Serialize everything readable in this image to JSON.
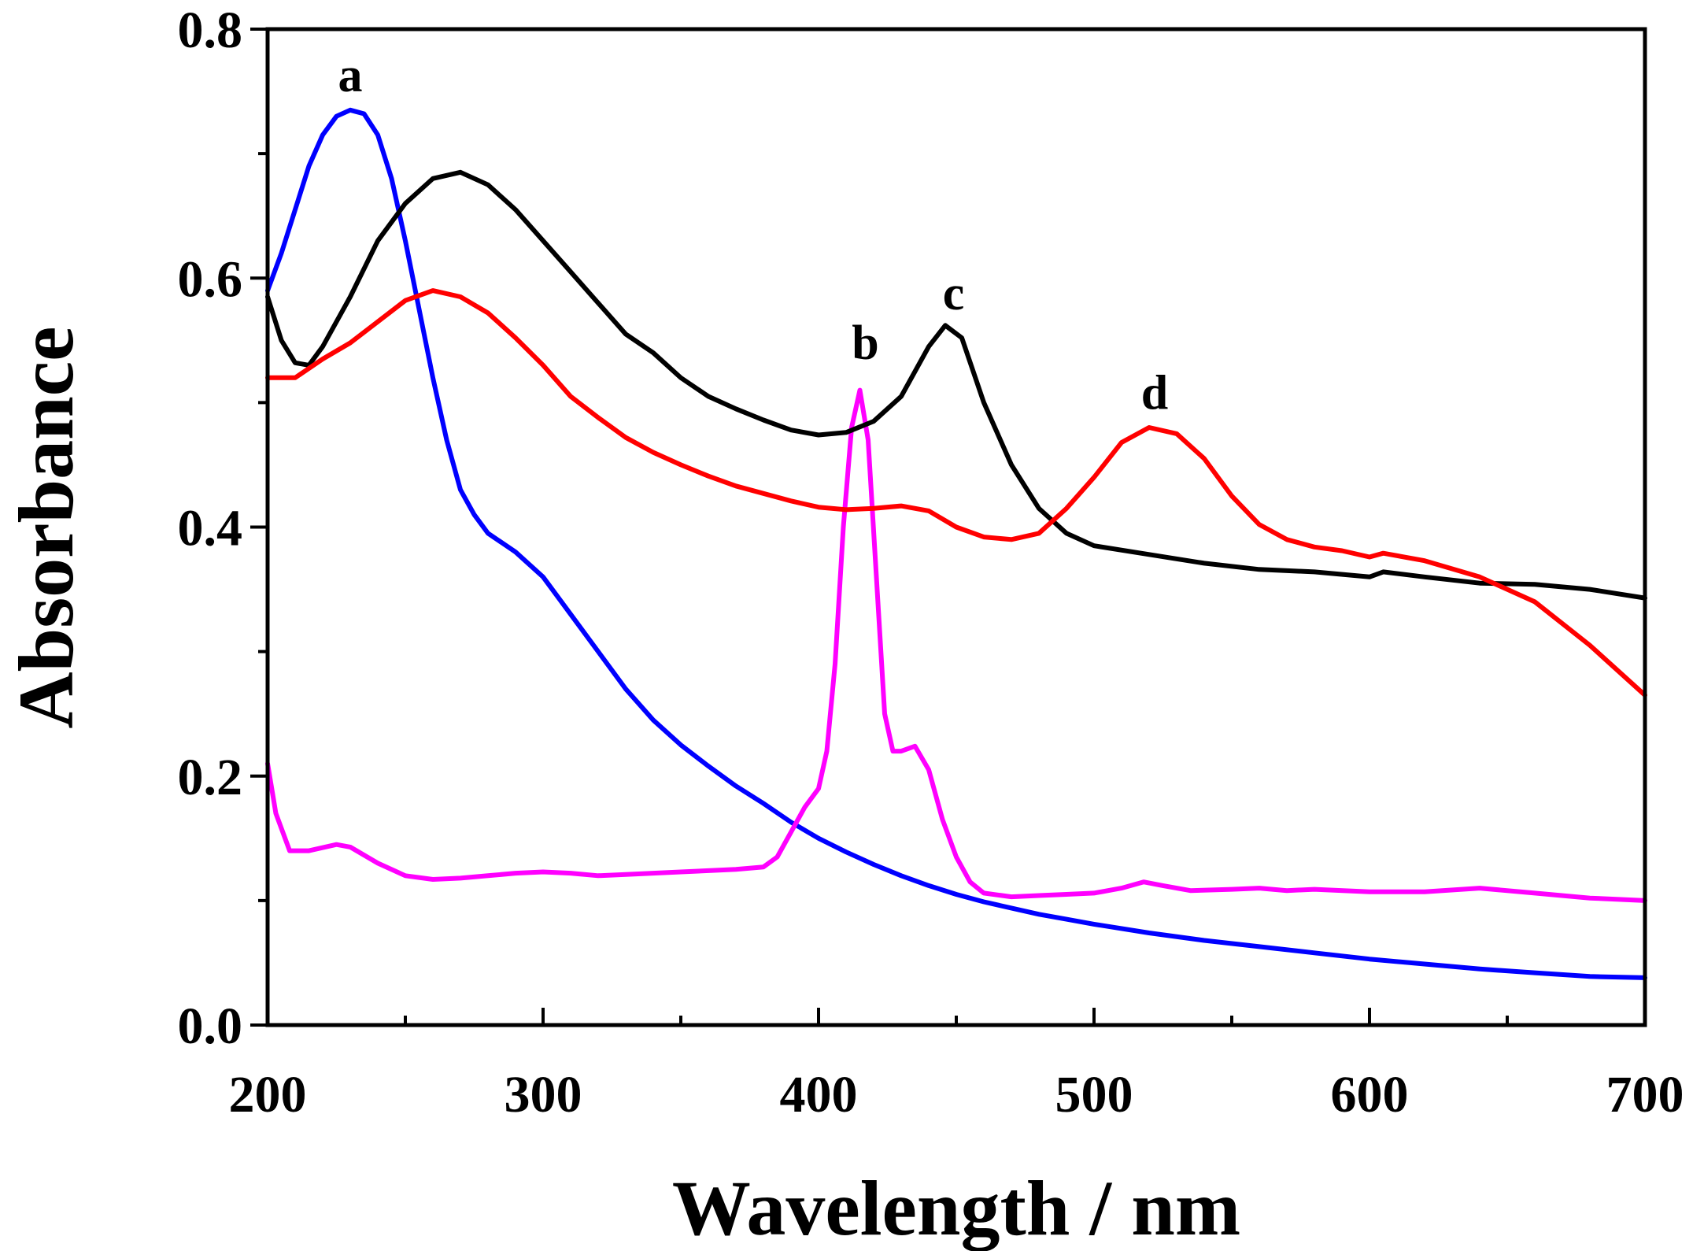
{
  "chart_data": {
    "type": "line",
    "xlabel": "Wavelength / nm",
    "ylabel": "Absorbance",
    "xlim": [
      200,
      700
    ],
    "ylim": [
      0.0,
      0.8
    ],
    "x_ticks": [
      200,
      300,
      400,
      500,
      600,
      700
    ],
    "x_tick_labels": [
      "200",
      "300",
      "400",
      "500",
      "600",
      "700"
    ],
    "y_ticks": [
      0.0,
      0.2,
      0.4,
      0.6,
      0.8
    ],
    "y_tick_labels": [
      "0.0",
      "0.2",
      "0.4",
      "0.6",
      "0.8"
    ],
    "grid": false,
    "legend": "none",
    "series": [
      {
        "label": "a",
        "color": "#0000ff",
        "label_pos": [
          230,
          0.75
        ],
        "points": [
          [
            200,
            0.59
          ],
          [
            205,
            0.62
          ],
          [
            210,
            0.655
          ],
          [
            215,
            0.69
          ],
          [
            220,
            0.715
          ],
          [
            225,
            0.73
          ],
          [
            230,
            0.735
          ],
          [
            235,
            0.732
          ],
          [
            240,
            0.715
          ],
          [
            245,
            0.68
          ],
          [
            250,
            0.63
          ],
          [
            255,
            0.575
          ],
          [
            260,
            0.52
          ],
          [
            265,
            0.47
          ],
          [
            270,
            0.43
          ],
          [
            275,
            0.41
          ],
          [
            280,
            0.395
          ],
          [
            290,
            0.38
          ],
          [
            300,
            0.36
          ],
          [
            310,
            0.33
          ],
          [
            320,
            0.3
          ],
          [
            330,
            0.27
          ],
          [
            340,
            0.245
          ],
          [
            350,
            0.225
          ],
          [
            360,
            0.208
          ],
          [
            370,
            0.192
          ],
          [
            380,
            0.178
          ],
          [
            390,
            0.163
          ],
          [
            400,
            0.15
          ],
          [
            410,
            0.139
          ],
          [
            420,
            0.129
          ],
          [
            430,
            0.12
          ],
          [
            440,
            0.112
          ],
          [
            450,
            0.105
          ],
          [
            460,
            0.099
          ],
          [
            470,
            0.094
          ],
          [
            480,
            0.089
          ],
          [
            490,
            0.085
          ],
          [
            500,
            0.081
          ],
          [
            520,
            0.074
          ],
          [
            540,
            0.068
          ],
          [
            560,
            0.063
          ],
          [
            580,
            0.058
          ],
          [
            600,
            0.053
          ],
          [
            620,
            0.049
          ],
          [
            640,
            0.045
          ],
          [
            660,
            0.042
          ],
          [
            680,
            0.039
          ],
          [
            700,
            0.038
          ]
        ]
      },
      {
        "label": "b",
        "color": "#ff00ff",
        "label_pos": [
          417,
          0.535
        ],
        "points": [
          [
            200,
            0.21
          ],
          [
            203,
            0.17
          ],
          [
            208,
            0.14
          ],
          [
            215,
            0.14
          ],
          [
            225,
            0.145
          ],
          [
            230,
            0.143
          ],
          [
            240,
            0.13
          ],
          [
            250,
            0.12
          ],
          [
            260,
            0.117
          ],
          [
            270,
            0.118
          ],
          [
            280,
            0.12
          ],
          [
            290,
            0.122
          ],
          [
            300,
            0.123
          ],
          [
            310,
            0.122
          ],
          [
            320,
            0.12
          ],
          [
            330,
            0.121
          ],
          [
            340,
            0.122
          ],
          [
            350,
            0.123
          ],
          [
            360,
            0.124
          ],
          [
            370,
            0.125
          ],
          [
            380,
            0.127
          ],
          [
            385,
            0.135
          ],
          [
            390,
            0.155
          ],
          [
            395,
            0.175
          ],
          [
            400,
            0.19
          ],
          [
            403,
            0.22
          ],
          [
            406,
            0.29
          ],
          [
            409,
            0.4
          ],
          [
            412,
            0.48
          ],
          [
            415,
            0.51
          ],
          [
            418,
            0.47
          ],
          [
            421,
            0.36
          ],
          [
            424,
            0.25
          ],
          [
            427,
            0.22
          ],
          [
            430,
            0.22
          ],
          [
            435,
            0.224
          ],
          [
            440,
            0.205
          ],
          [
            445,
            0.165
          ],
          [
            450,
            0.135
          ],
          [
            455,
            0.115
          ],
          [
            460,
            0.106
          ],
          [
            470,
            0.103
          ],
          [
            480,
            0.104
          ],
          [
            490,
            0.105
          ],
          [
            500,
            0.106
          ],
          [
            510,
            0.11
          ],
          [
            518,
            0.115
          ],
          [
            525,
            0.112
          ],
          [
            535,
            0.108
          ],
          [
            550,
            0.109
          ],
          [
            560,
            0.11
          ],
          [
            570,
            0.108
          ],
          [
            580,
            0.109
          ],
          [
            600,
            0.107
          ],
          [
            620,
            0.107
          ],
          [
            640,
            0.11
          ],
          [
            660,
            0.106
          ],
          [
            680,
            0.102
          ],
          [
            700,
            0.1
          ]
        ]
      },
      {
        "label": "c",
        "color": "#000000",
        "label_pos": [
          449,
          0.575
        ],
        "points": [
          [
            200,
            0.585
          ],
          [
            205,
            0.55
          ],
          [
            210,
            0.532
          ],
          [
            215,
            0.53
          ],
          [
            220,
            0.545
          ],
          [
            230,
            0.585
          ],
          [
            240,
            0.63
          ],
          [
            250,
            0.66
          ],
          [
            260,
            0.68
          ],
          [
            270,
            0.685
          ],
          [
            280,
            0.675
          ],
          [
            290,
            0.655
          ],
          [
            300,
            0.63
          ],
          [
            310,
            0.605
          ],
          [
            320,
            0.58
          ],
          [
            330,
            0.555
          ],
          [
            340,
            0.54
          ],
          [
            350,
            0.52
          ],
          [
            360,
            0.505
          ],
          [
            370,
            0.495
          ],
          [
            380,
            0.486
          ],
          [
            390,
            0.478
          ],
          [
            400,
            0.474
          ],
          [
            410,
            0.476
          ],
          [
            420,
            0.485
          ],
          [
            430,
            0.505
          ],
          [
            440,
            0.545
          ],
          [
            446,
            0.562
          ],
          [
            452,
            0.552
          ],
          [
            460,
            0.5
          ],
          [
            470,
            0.45
          ],
          [
            480,
            0.415
          ],
          [
            490,
            0.395
          ],
          [
            500,
            0.385
          ],
          [
            520,
            0.378
          ],
          [
            540,
            0.371
          ],
          [
            560,
            0.366
          ],
          [
            580,
            0.364
          ],
          [
            600,
            0.36
          ],
          [
            605,
            0.364
          ],
          [
            620,
            0.36
          ],
          [
            640,
            0.355
          ],
          [
            660,
            0.354
          ],
          [
            680,
            0.35
          ],
          [
            700,
            0.343
          ]
        ]
      },
      {
        "label": "d",
        "color": "#ff0000",
        "label_pos": [
          522,
          0.495
        ],
        "points": [
          [
            200,
            0.52
          ],
          [
            210,
            0.52
          ],
          [
            220,
            0.535
          ],
          [
            230,
            0.548
          ],
          [
            240,
            0.565
          ],
          [
            250,
            0.582
          ],
          [
            260,
            0.59
          ],
          [
            270,
            0.585
          ],
          [
            280,
            0.572
          ],
          [
            290,
            0.552
          ],
          [
            300,
            0.53
          ],
          [
            310,
            0.505
          ],
          [
            320,
            0.488
          ],
          [
            330,
            0.472
          ],
          [
            340,
            0.46
          ],
          [
            350,
            0.45
          ],
          [
            360,
            0.441
          ],
          [
            370,
            0.433
          ],
          [
            380,
            0.427
          ],
          [
            390,
            0.421
          ],
          [
            400,
            0.416
          ],
          [
            410,
            0.414
          ],
          [
            420,
            0.415
          ],
          [
            430,
            0.417
          ],
          [
            440,
            0.413
          ],
          [
            450,
            0.4
          ],
          [
            460,
            0.392
          ],
          [
            470,
            0.39
          ],
          [
            480,
            0.395
          ],
          [
            490,
            0.415
          ],
          [
            500,
            0.44
          ],
          [
            510,
            0.468
          ],
          [
            520,
            0.48
          ],
          [
            530,
            0.475
          ],
          [
            540,
            0.455
          ],
          [
            550,
            0.425
          ],
          [
            560,
            0.402
          ],
          [
            570,
            0.39
          ],
          [
            580,
            0.384
          ],
          [
            590,
            0.381
          ],
          [
            600,
            0.376
          ],
          [
            605,
            0.379
          ],
          [
            620,
            0.373
          ],
          [
            640,
            0.36
          ],
          [
            660,
            0.34
          ],
          [
            680,
            0.305
          ],
          [
            700,
            0.265
          ]
        ]
      }
    ]
  }
}
